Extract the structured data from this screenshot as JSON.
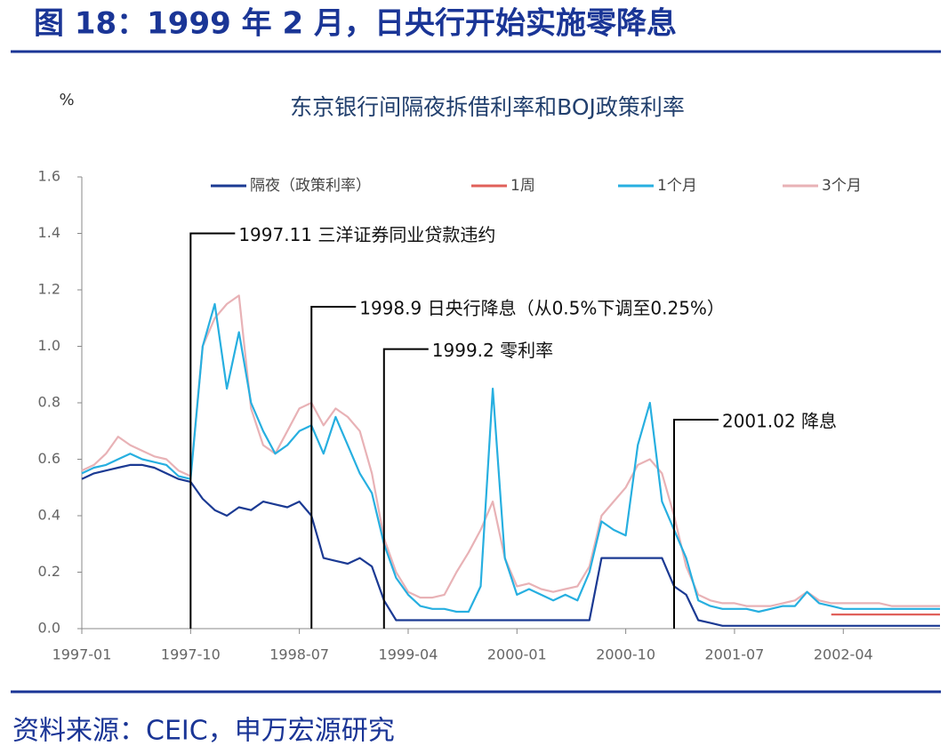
{
  "page": {
    "title": "图 18：1999 年 2 月，日央行开始实施零降息",
    "source": "资料来源：CEIC，申万宏源研究"
  },
  "chart_data": {
    "type": "line",
    "title": "东京银行间隔夜拆借利率和BOJ政策利率",
    "y_label": "%",
    "x": [
      "1997-01",
      "1997-02",
      "1997-03",
      "1997-04",
      "1997-05",
      "1997-06",
      "1997-07",
      "1997-08",
      "1997-09",
      "1997-10",
      "1997-11",
      "1997-12",
      "1998-01",
      "1998-02",
      "1998-03",
      "1998-04",
      "1998-05",
      "1998-06",
      "1998-07",
      "1998-08",
      "1998-09",
      "1998-10",
      "1998-11",
      "1998-12",
      "1999-01",
      "1999-02",
      "1999-03",
      "1999-04",
      "1999-05",
      "1999-06",
      "1999-07",
      "1999-08",
      "1999-09",
      "1999-10",
      "1999-11",
      "1999-12",
      "2000-01",
      "2000-02",
      "2000-03",
      "2000-04",
      "2000-05",
      "2000-06",
      "2000-07",
      "2000-08",
      "2000-09",
      "2000-10",
      "2000-11",
      "2000-12",
      "2001-01",
      "2001-02",
      "2001-03",
      "2001-04",
      "2001-05",
      "2001-06",
      "2001-07",
      "2001-08",
      "2001-09",
      "2001-10",
      "2001-11",
      "2001-12",
      "2002-01",
      "2002-02",
      "2002-03",
      "2002-04",
      "2002-05",
      "2002-06",
      "2002-07",
      "2002-08",
      "2002-09",
      "2002-10",
      "2002-11",
      "2002-12"
    ],
    "xticks": [
      "1997-01",
      "1997-10",
      "1998-07",
      "1999-04",
      "2000-01",
      "2000-10",
      "2001-07",
      "2002-04"
    ],
    "ylim": [
      0,
      1.6
    ],
    "yticks": [
      {
        "value": 0,
        "label": "0.0"
      },
      0.2,
      0.4,
      0.6,
      0.8,
      {
        "value": 1,
        "label": "1.0"
      },
      1.2,
      1.4,
      1.6
    ],
    "legend": "top",
    "series": [
      {
        "name": "隔夜（政策利率）",
        "color": "#1b3a93",
        "values": [
          0.53,
          0.55,
          0.56,
          0.57,
          0.58,
          0.58,
          0.57,
          0.55,
          0.53,
          0.52,
          0.46,
          0.42,
          0.4,
          0.43,
          0.42,
          0.45,
          0.44,
          0.43,
          0.45,
          0.4,
          0.25,
          0.24,
          0.23,
          0.25,
          0.22,
          0.1,
          0.03,
          0.03,
          0.03,
          0.03,
          0.03,
          0.03,
          0.03,
          0.03,
          0.03,
          0.03,
          0.03,
          0.03,
          0.03,
          0.03,
          0.03,
          0.03,
          0.03,
          0.25,
          0.25,
          0.25,
          0.25,
          0.25,
          0.25,
          0.15,
          0.12,
          0.03,
          0.02,
          0.01,
          0.01,
          0.01,
          0.01,
          0.01,
          0.01,
          0.01,
          0.01,
          0.01,
          0.01,
          0.01,
          0.01,
          0.01,
          0.01,
          0.01,
          0.01,
          0.01,
          0.01,
          0.01
        ]
      },
      {
        "name": "1周",
        "color": "#e0605a",
        "values": [
          null,
          null,
          null,
          null,
          null,
          null,
          null,
          null,
          null,
          null,
          null,
          null,
          null,
          null,
          null,
          null,
          null,
          null,
          null,
          null,
          null,
          null,
          null,
          null,
          null,
          null,
          null,
          null,
          null,
          null,
          null,
          null,
          null,
          null,
          null,
          null,
          null,
          null,
          null,
          null,
          null,
          null,
          null,
          null,
          null,
          null,
          null,
          null,
          null,
          null,
          null,
          null,
          null,
          null,
          null,
          null,
          null,
          null,
          null,
          null,
          null,
          null,
          0.05,
          0.05,
          0.05,
          0.05,
          0.05,
          0.05,
          0.05,
          0.05,
          0.05,
          0.05
        ]
      },
      {
        "name": "1个月",
        "color": "#27afe0",
        "values": [
          0.55,
          0.57,
          0.58,
          0.6,
          0.62,
          0.6,
          0.59,
          0.58,
          0.54,
          0.53,
          1.0,
          1.15,
          0.85,
          1.05,
          0.8,
          0.7,
          0.62,
          0.65,
          0.7,
          0.72,
          0.62,
          0.75,
          0.65,
          0.55,
          0.48,
          0.3,
          0.18,
          0.12,
          0.08,
          0.07,
          0.07,
          0.06,
          0.06,
          0.15,
          0.85,
          0.25,
          0.12,
          0.14,
          0.12,
          0.1,
          0.12,
          0.1,
          0.2,
          0.38,
          0.35,
          0.33,
          0.65,
          0.8,
          0.45,
          0.35,
          0.25,
          0.1,
          0.08,
          0.07,
          0.07,
          0.07,
          0.06,
          0.07,
          0.08,
          0.08,
          0.13,
          0.09,
          0.08,
          0.07,
          0.07,
          0.07,
          0.07,
          0.07,
          0.07,
          0.07,
          0.07,
          0.07
        ]
      },
      {
        "name": "3个月",
        "color": "#e8b2b6",
        "values": [
          0.56,
          0.58,
          0.62,
          0.68,
          0.65,
          0.63,
          0.61,
          0.6,
          0.56,
          0.54,
          1.0,
          1.1,
          1.15,
          1.18,
          0.78,
          0.65,
          0.62,
          0.7,
          0.78,
          0.8,
          0.72,
          0.78,
          0.75,
          0.7,
          0.55,
          0.32,
          0.2,
          0.13,
          0.11,
          0.11,
          0.12,
          0.2,
          0.27,
          0.35,
          0.45,
          0.25,
          0.15,
          0.16,
          0.14,
          0.13,
          0.14,
          0.15,
          0.22,
          0.4,
          0.45,
          0.5,
          0.58,
          0.6,
          0.55,
          0.4,
          0.22,
          0.12,
          0.1,
          0.09,
          0.09,
          0.08,
          0.08,
          0.08,
          0.09,
          0.1,
          0.13,
          0.1,
          0.09,
          0.09,
          0.09,
          0.09,
          0.09,
          0.08,
          0.08,
          0.08,
          0.08,
          0.08
        ]
      }
    ],
    "annotations": [
      {
        "text": "1997.11 三洋证券同业贷款违约",
        "x": "1997-10",
        "y": 1.4
      },
      {
        "text": "1998.9 日央行降息（从0.5%下调至0.25%）",
        "x": "1998-08",
        "y": 1.14
      },
      {
        "text": "1999.2 零利率",
        "x": "1999-02",
        "y": 0.99
      },
      {
        "text": "2001.02 降息",
        "x": "2001-02",
        "y": 0.74
      }
    ]
  }
}
